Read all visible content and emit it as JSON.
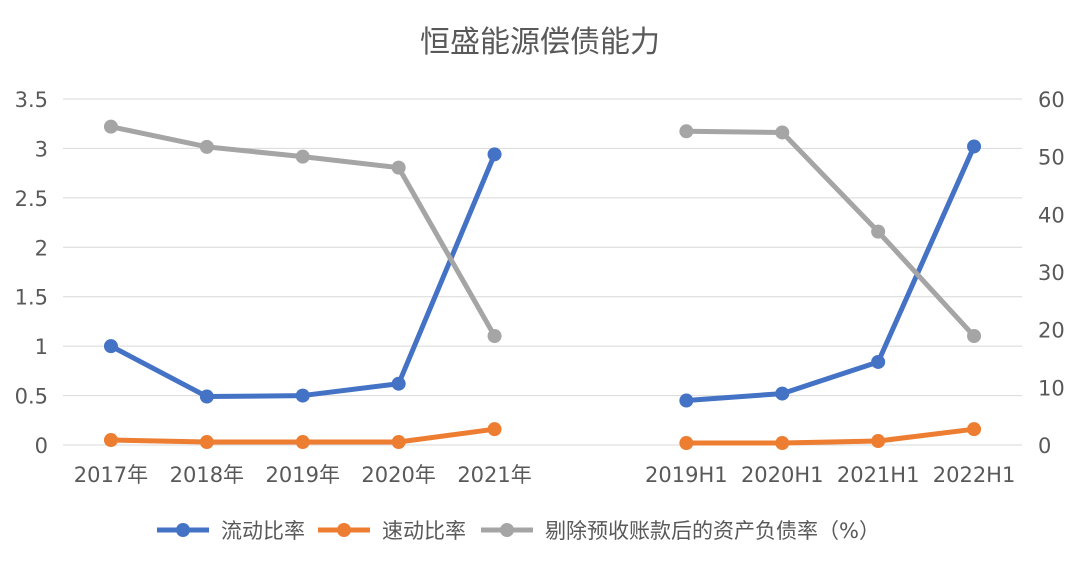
{
  "chart_data": {
    "type": "line",
    "title": "恒盛能源偿债能力",
    "xlabel": "",
    "ylabel": "",
    "categories": [
      "2017年",
      "2018年",
      "2019年",
      "2020年",
      "2021年",
      "",
      "2019H1",
      "2020H1",
      "2021H1",
      "2022H1"
    ],
    "y_left": {
      "ylim": [
        0,
        3.5
      ],
      "ticks": [
        "0",
        "0.5",
        "1",
        "1.5",
        "2",
        "2.5",
        "3",
        "3.5"
      ],
      "tick_values": [
        0,
        0.5,
        1,
        1.5,
        2,
        2.5,
        3,
        3.5
      ]
    },
    "y_right": {
      "ylim": [
        0,
        60
      ],
      "ticks": [
        "0",
        "10",
        "20",
        "30",
        "40",
        "50",
        "60"
      ],
      "tick_values": [
        0,
        10,
        20,
        30,
        40,
        50,
        60
      ]
    },
    "grid": true,
    "legend_position": "bottom",
    "series": [
      {
        "name": "流动比率",
        "axis": "left",
        "color": "#4472C4",
        "values": [
          1.0,
          0.49,
          0.5,
          0.62,
          2.94,
          null,
          0.45,
          0.52,
          0.84,
          3.02
        ]
      },
      {
        "name": "速动比率",
        "axis": "left",
        "color": "#ED7D31",
        "values": [
          0.05,
          0.03,
          0.03,
          0.03,
          0.16,
          null,
          0.02,
          0.02,
          0.04,
          0.16
        ]
      },
      {
        "name": "剔除预收账款后的资产负债率（%）",
        "axis": "right",
        "color": "#A5A5A5",
        "values": [
          55.2,
          51.7,
          50.0,
          48.1,
          18.9,
          null,
          54.4,
          54.2,
          37.0,
          18.9
        ]
      }
    ]
  }
}
